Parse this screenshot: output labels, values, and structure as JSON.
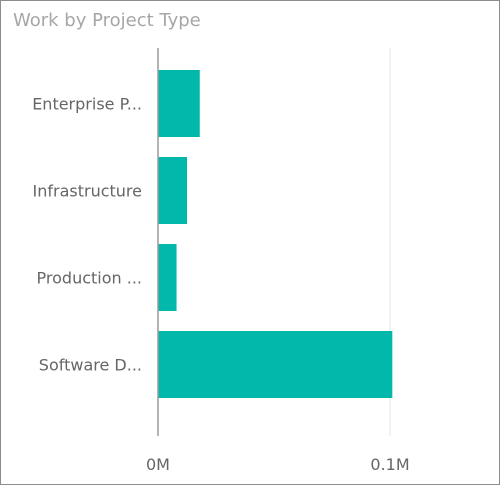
{
  "chart_data": {
    "type": "bar",
    "orientation": "horizontal",
    "title": "Work by Project Type",
    "categories": [
      "Enterprise P...",
      "Infrastructure",
      "Production ...",
      "Software D..."
    ],
    "values": [
      18000,
      12500,
      8000,
      101000
    ],
    "x_ticks": [
      {
        "value": 0,
        "label": "0M"
      },
      {
        "value": 100000,
        "label": "0.1M"
      }
    ],
    "xlim": [
      0,
      100000
    ],
    "bar_color": "#01b8aa",
    "grid": true
  }
}
